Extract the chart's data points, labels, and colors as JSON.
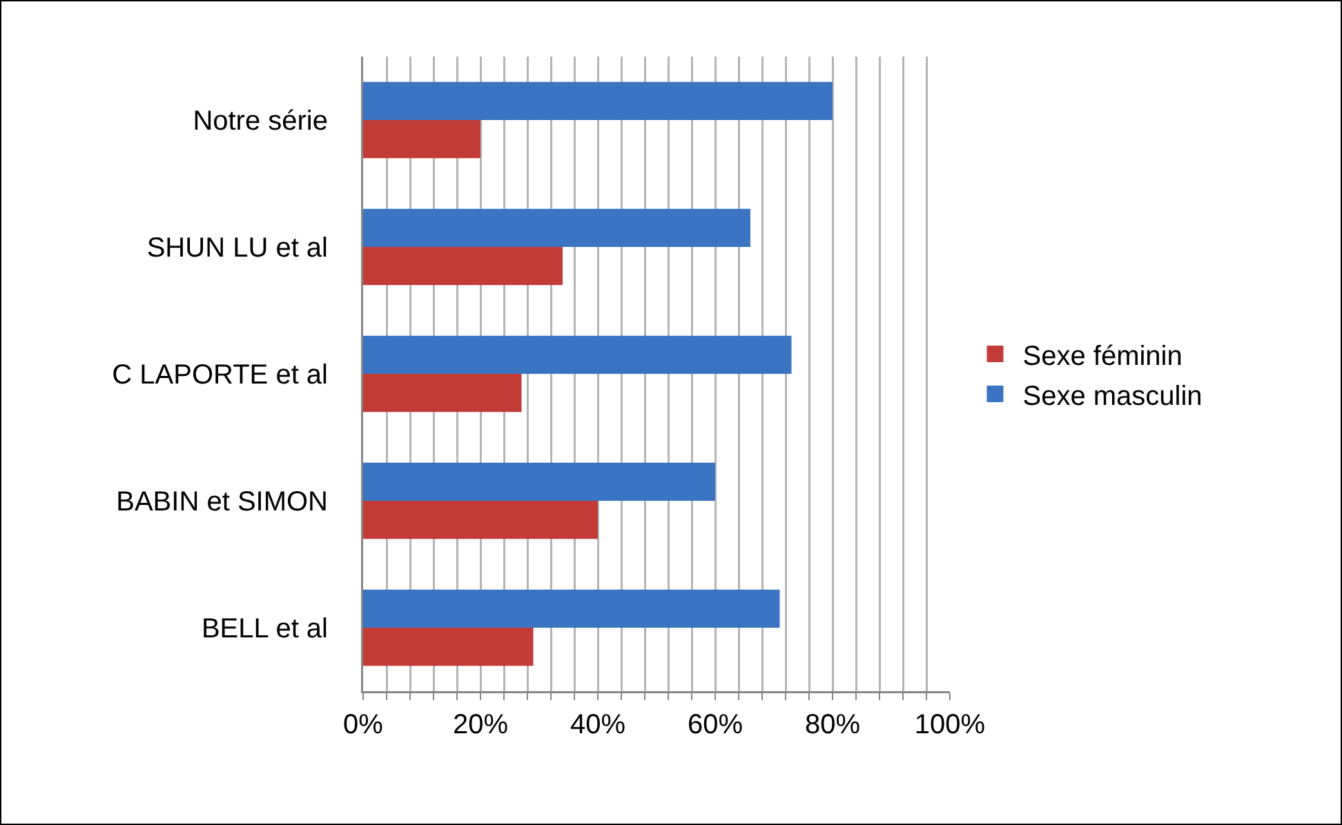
{
  "chart_data": {
    "type": "bar",
    "orientation": "horizontal",
    "categories": [
      "Notre série",
      "SHUN LU et al",
      "C LAPORTE et al",
      "BABIN et SIMON",
      "BELL et al"
    ],
    "series": [
      {
        "name": "Sexe féminin",
        "color": "#c33b36",
        "values": [
          20,
          34,
          27,
          40,
          29
        ]
      },
      {
        "name": "Sexe masculin",
        "color": "#3a74c2",
        "values": [
          80,
          66,
          73,
          60,
          71
        ]
      }
    ],
    "xlim": [
      0,
      100
    ],
    "xticks": [
      {
        "value": 0,
        "label": "0%"
      },
      {
        "value": 4,
        "label": null
      },
      {
        "value": 8,
        "label": null
      },
      {
        "value": 12,
        "label": null
      },
      {
        "value": 16,
        "label": null
      },
      {
        "value": 20,
        "label": "20%"
      },
      {
        "value": 24,
        "label": null
      },
      {
        "value": 28,
        "label": null
      },
      {
        "value": 32,
        "label": null
      },
      {
        "value": 36,
        "label": null
      },
      {
        "value": 40,
        "label": "40%"
      },
      {
        "value": 44,
        "label": null
      },
      {
        "value": 48,
        "label": null
      },
      {
        "value": 52,
        "label": null
      },
      {
        "value": 56,
        "label": null
      },
      {
        "value": 60,
        "label": "60%"
      },
      {
        "value": 64,
        "label": null
      },
      {
        "value": 68,
        "label": null
      },
      {
        "value": 72,
        "label": null
      },
      {
        "value": 76,
        "label": null
      },
      {
        "value": 80,
        "label": "80%"
      },
      {
        "value": 84,
        "label": null
      },
      {
        "value": 88,
        "label": null
      },
      {
        "value": 92,
        "label": null
      },
      {
        "value": 96,
        "label": null
      },
      {
        "value": 100,
        "label": "100%"
      }
    ],
    "grid": "x",
    "legend": "right"
  }
}
